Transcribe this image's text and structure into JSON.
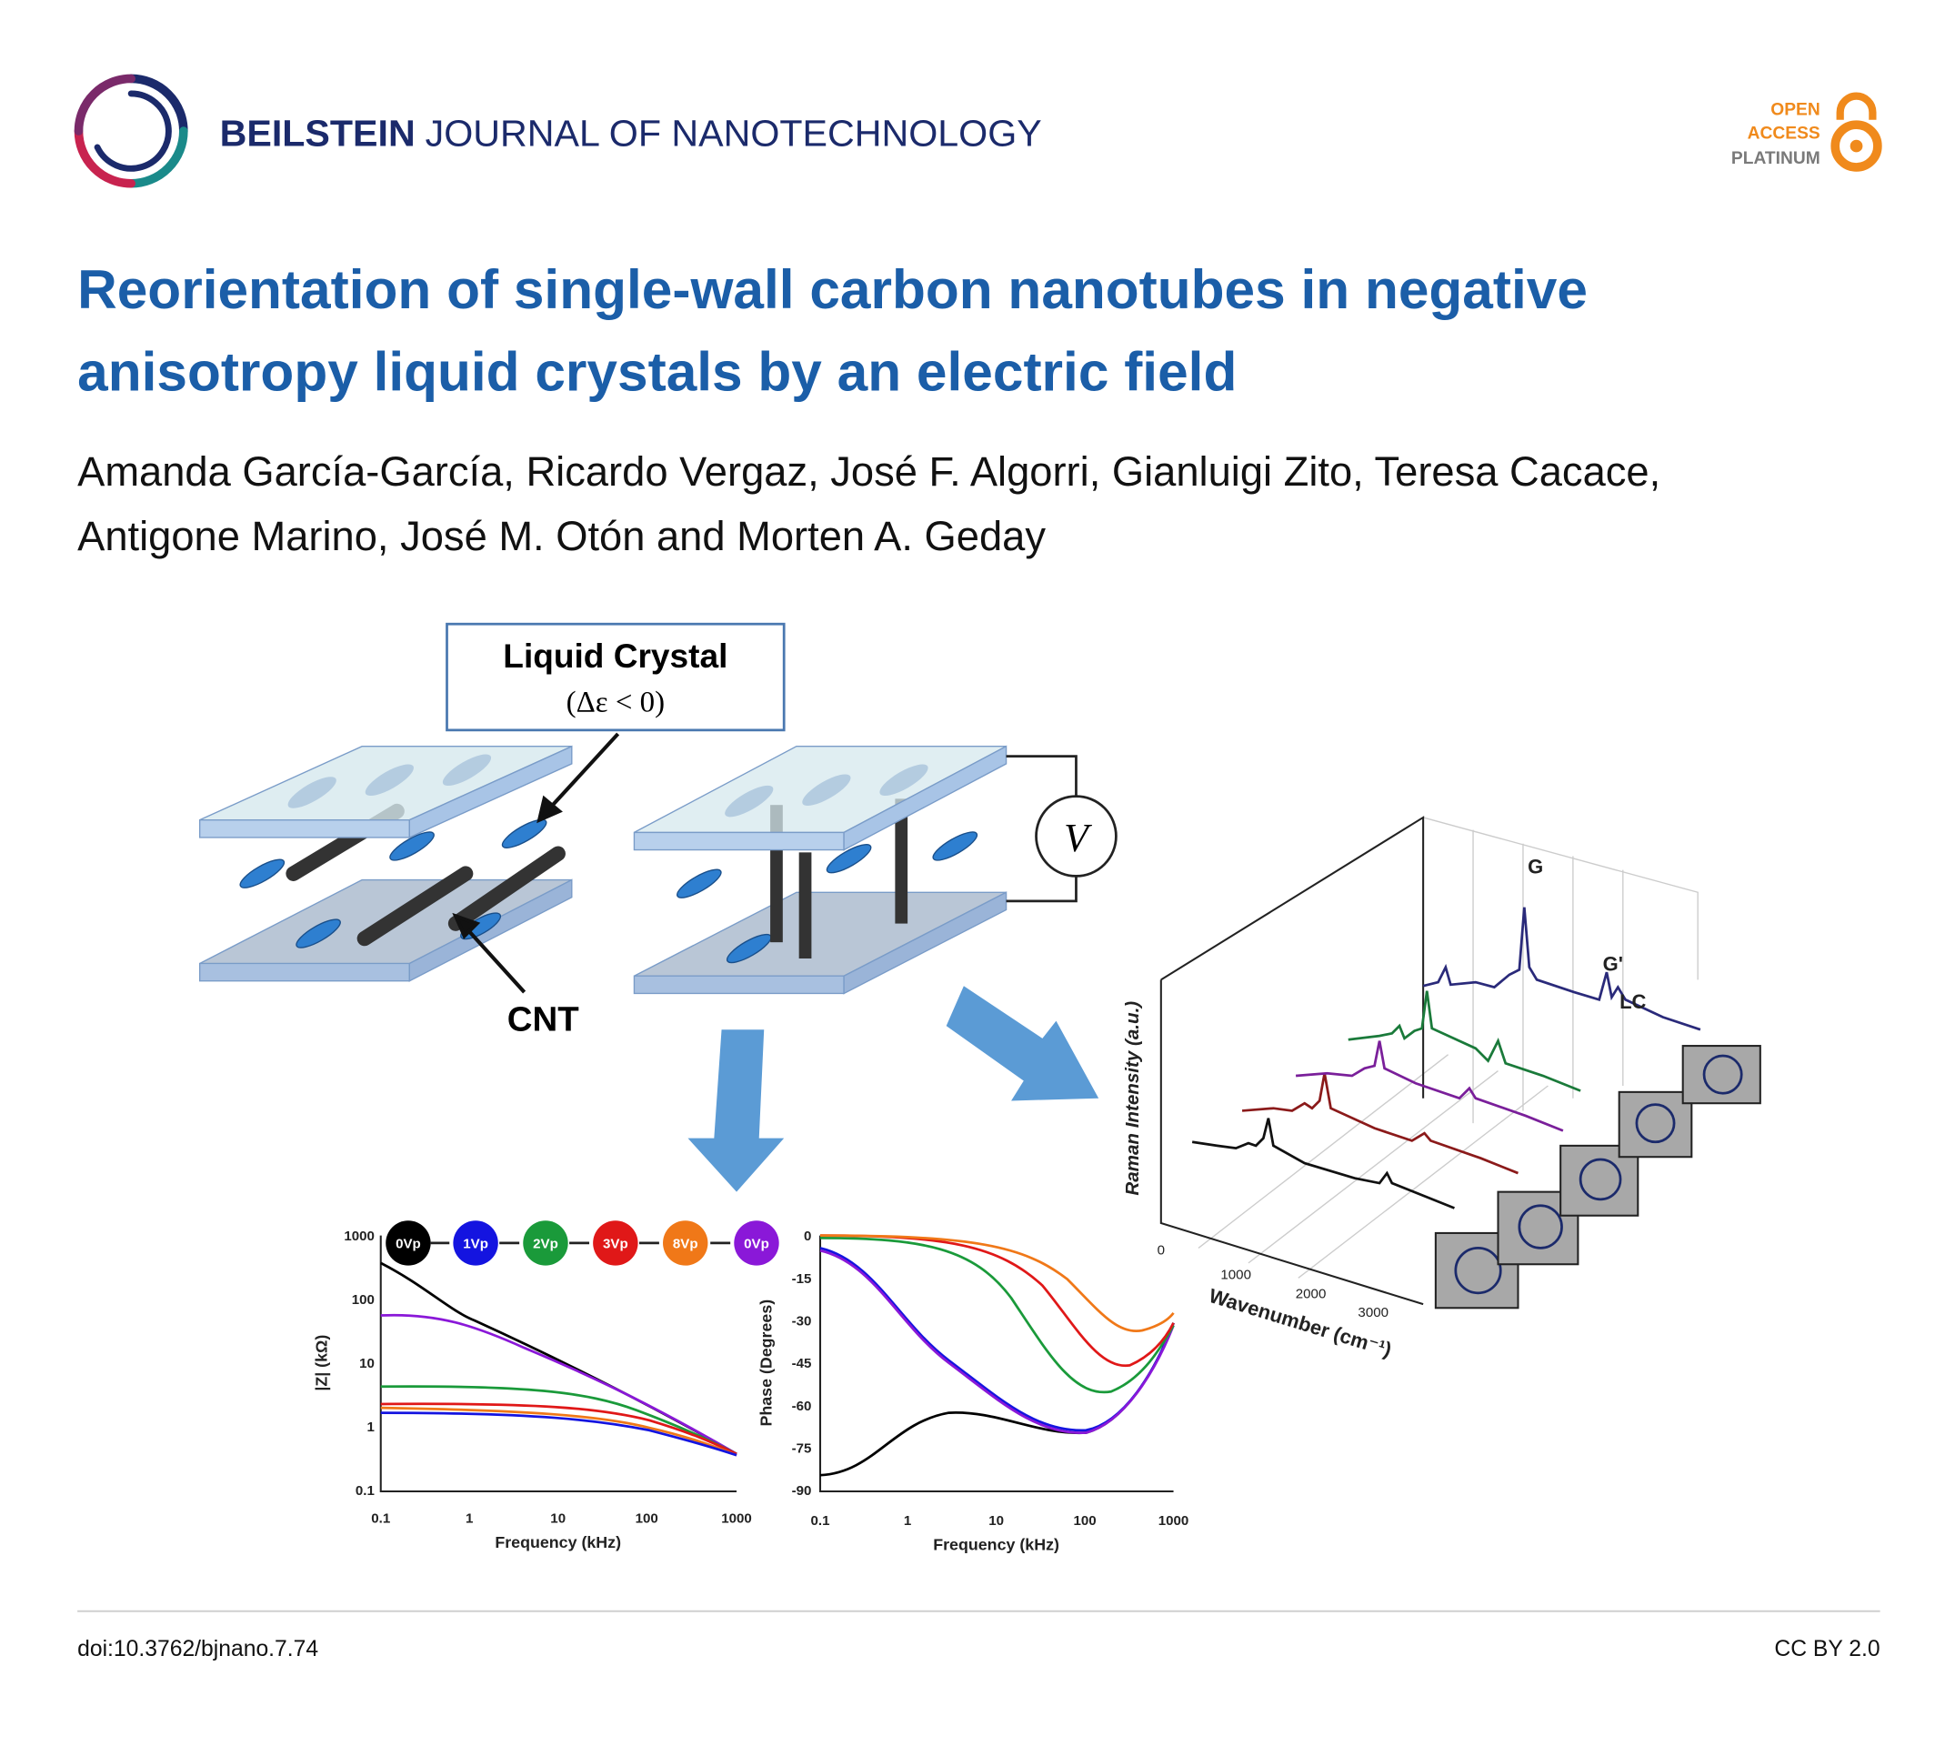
{
  "header": {
    "journal_bold": "BEILSTEIN",
    "journal_rest": "JOURNAL OF NANOTECHNOLOGY",
    "badge": [
      "OPEN",
      "ACCESS",
      "PLATINUM"
    ]
  },
  "article": {
    "title_lines": [
      "Reorientation of single-wall carbon nanotubes in negative",
      "anisotropy liquid crystals by an electric field"
    ],
    "author_lines": [
      "Amanda García-García, Ricardo Vergaz, José F. Algorri, Gianluigi Zito, Teresa Cacace,",
      "Antigone Marino, José M. Otón and Morten A. Geday"
    ]
  },
  "figure": {
    "lc_label": "Liquid Crystal",
    "lc_condition": "(Δε < 0)",
    "cnt_label": "CNT",
    "voltage_label": "V",
    "voltage_steps": [
      "0Vp",
      "1Vp",
      "2Vp",
      "3Vp",
      "8Vp",
      "0Vp"
    ],
    "impedance": {
      "ylabel": "|Z| (kΩ)",
      "xlabel": "Frequency (kHz)",
      "yticks": [
        "1000",
        "100",
        "10",
        "1",
        "0.1"
      ],
      "xticks": [
        "0.1",
        "1",
        "10",
        "100",
        "1000"
      ]
    },
    "phase": {
      "ylabel": "Phase (Degrees)",
      "xlabel": "Frequency (kHz)",
      "yticks": [
        "0",
        "-15",
        "-30",
        "-45",
        "-60",
        "-75",
        "-90"
      ],
      "xticks": [
        "0.1",
        "1",
        "10",
        "100",
        "1000"
      ]
    },
    "raman": {
      "ylabel": "Raman Intensity (a.u.)",
      "xlabel": "Wavenumber (cm⁻¹)",
      "xticks": [
        "0",
        "1000",
        "2000",
        "3000"
      ],
      "peaks": [
        "G",
        "G'",
        "LC"
      ]
    }
  },
  "footer": {
    "doi": "doi:10.3762/bjnano.7.74",
    "license": "CC BY 2.0"
  }
}
